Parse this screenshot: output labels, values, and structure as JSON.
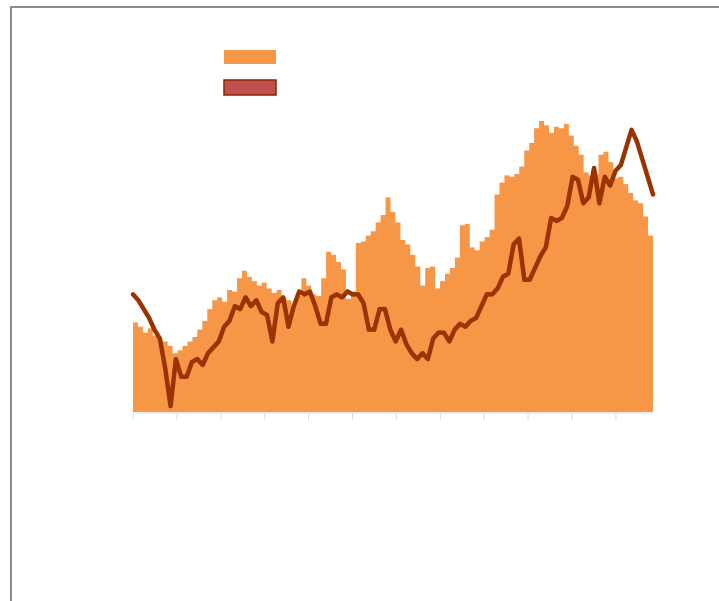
{
  "chart_data": {
    "type": "area",
    "title": "",
    "xlabel": "",
    "ylabel": "",
    "x_tick_labels": [
      "",
      "",
      "",
      "",
      "",
      "",
      "",
      "",
      "",
      "",
      "",
      ""
    ],
    "grid": false,
    "legend_placement": "top-left",
    "series": [
      {
        "name": "",
        "type": "area",
        "color": "#f79646",
        "values": [
          30.5,
          29,
          27,
          28.5,
          26,
          24.5,
          24,
          22.5,
          20,
          21,
          22.5,
          24,
          25.5,
          28,
          31,
          35,
          38,
          39,
          37.5,
          41.5,
          41,
          45.5,
          48,
          46,
          44.5,
          43,
          44,
          42,
          40.5,
          41.5,
          39,
          38,
          36.5,
          39.5,
          45.5,
          43,
          40,
          39.5,
          45.5,
          54.5,
          53.5,
          51,
          48.5,
          38.5,
          41,
          57.5,
          58,
          60,
          61.5,
          64.5,
          67,
          73,
          68,
          64.5,
          58.5,
          57,
          53.5,
          49.5,
          43,
          49,
          49.5,
          42,
          44.5,
          47,
          49,
          52.5,
          63.5,
          64,
          56,
          55,
          58,
          59.5,
          62,
          74,
          78,
          80.5,
          80,
          81,
          83.5,
          89,
          91.5,
          96.5,
          99,
          97.5,
          95,
          97,
          96.5,
          98,
          94,
          90.5,
          87.5,
          81.5,
          80.5,
          81,
          87.5,
          88.5,
          85,
          79.5,
          80,
          77.5,
          74.5,
          72,
          71,
          66.5,
          60
        ]
      },
      {
        "name": "",
        "type": "line",
        "color": "#993300",
        "values": [
          40,
          38,
          35,
          32,
          28,
          25,
          15,
          2,
          18,
          12,
          12,
          17,
          18,
          16,
          20,
          22,
          24,
          29,
          31,
          36,
          35,
          39,
          36,
          38,
          34,
          33,
          24,
          37,
          39,
          29,
          36,
          41,
          40,
          41,
          36,
          30,
          30,
          39,
          40,
          39,
          41,
          40,
          40,
          37,
          28,
          28,
          35,
          35,
          28,
          24,
          28,
          23,
          20,
          18,
          20,
          18,
          25,
          27,
          27,
          24,
          28,
          30,
          29,
          31,
          32,
          36,
          40,
          40,
          42,
          46,
          47,
          57,
          59,
          45,
          45,
          49,
          53,
          56,
          66,
          65,
          66,
          70,
          80,
          79,
          71,
          73,
          83,
          71,
          80,
          77,
          82,
          84,
          90,
          96,
          92,
          86,
          80,
          74
        ]
      }
    ]
  }
}
